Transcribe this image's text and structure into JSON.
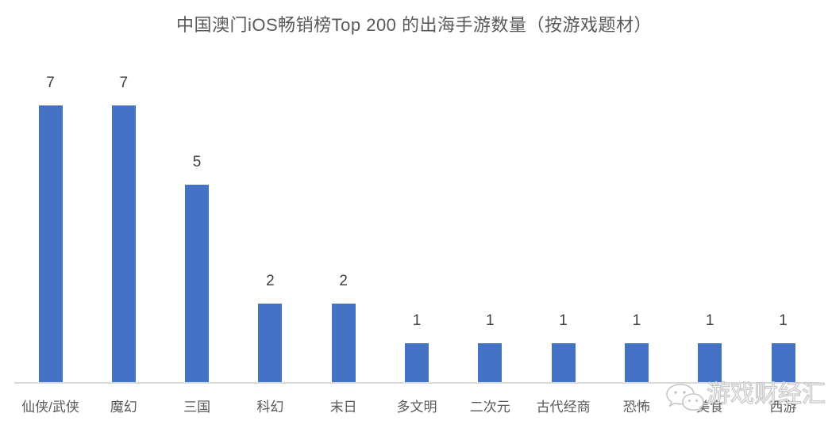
{
  "title": "中国澳门iOS畅销榜Top 200 的出海手游数量（按游戏题材）",
  "chart_data": {
    "type": "bar",
    "title": "中国澳门iOS畅销榜Top 200 的出海手游数量（按游戏题材）",
    "categories": [
      "仙侠/武侠",
      "魔幻",
      "三国",
      "科幻",
      "末日",
      "多文明",
      "二次元",
      "古代经商",
      "恐怖",
      "美食",
      "西游"
    ],
    "values": [
      7,
      7,
      5,
      2,
      2,
      1,
      1,
      1,
      1,
      1,
      1
    ],
    "xlabel": "",
    "ylabel": "",
    "ylim": [
      0,
      7.5
    ],
    "gridlines": false,
    "legend": "none",
    "data_labels_shown": true,
    "bar_color": "#4472C4",
    "axis_line_color": "#D9D9D9"
  },
  "watermark": {
    "icon": "wechat-icon",
    "text": "游戏财经汇"
  },
  "colors": {
    "background": "#ffffff",
    "title_text": "#595959",
    "category_text": "#595959",
    "data_label_text": "#404040",
    "watermark_outline": "#c6c6c6"
  }
}
